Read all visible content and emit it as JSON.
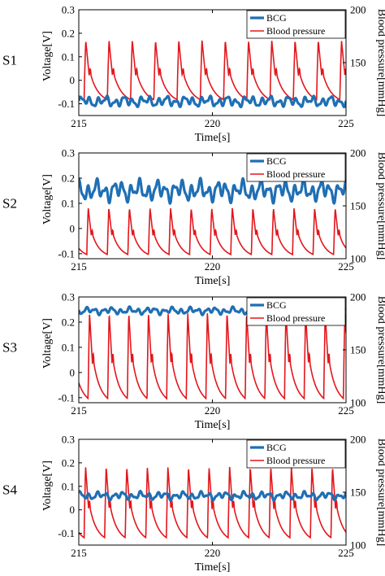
{
  "colors": {
    "bcg": "#1f6fb4",
    "bp": "#e3161b"
  },
  "chart_data": [
    {
      "type": "line",
      "row_label": "S1",
      "xlabel": "Time[s]",
      "ylabel_left": "Voltage[V]",
      "ylabel_right": "Blood pressure[mmHg]",
      "xlim": [
        215,
        225
      ],
      "ylim_left": [
        -0.15,
        0.3
      ],
      "ylim_right": [
        100,
        200
      ],
      "xticks": [
        "215",
        "220",
        "225"
      ],
      "yticks_left": [
        "-0.1",
        "0",
        "0.1",
        "0.2",
        "0.3"
      ],
      "yticks_right": [
        "150",
        "200"
      ],
      "legend": [
        "BCG",
        "Blood pressure"
      ],
      "legend_position": "top-right",
      "series": [
        {
          "name": "BCG",
          "axis": "left",
          "baseline": -0.09,
          "amplitude": 0.025,
          "phase": 0.0
        },
        {
          "name": "Blood pressure",
          "axis": "right",
          "period_s": 0.87,
          "t0": 215.2,
          "systolic_mmHg": 171,
          "diastolic_mmHg": 115,
          "notch_mmHg": 135
        }
      ]
    },
    {
      "type": "line",
      "row_label": "S2",
      "xlabel": "Time[s]",
      "ylabel_left": "Voltage[V]",
      "ylabel_right": "Blood pressure[mmHg]",
      "xlim": [
        215,
        225
      ],
      "ylim_left": [
        -0.12,
        0.3
      ],
      "ylim_right": [
        100,
        200
      ],
      "xticks": [
        "215",
        "220",
        "225"
      ],
      "yticks_left": [
        "-0.1",
        "0",
        "0.1",
        "0.2",
        "0.3"
      ],
      "yticks_right": [
        "100",
        "150",
        "200"
      ],
      "legend": [
        "BCG",
        "Blood pressure"
      ],
      "legend_position": "top-right",
      "series": [
        {
          "name": "BCG",
          "axis": "left",
          "baseline": 0.15,
          "amplitude": 0.045,
          "phase": 1.1
        },
        {
          "name": "Blood pressure",
          "axis": "right",
          "period_s": 0.77,
          "t0": 215.3,
          "systolic_mmHg": 148,
          "diastolic_mmHg": 104,
          "notch_mmHg": 125
        }
      ]
    },
    {
      "type": "line",
      "row_label": "S3",
      "xlabel": "Time[s]",
      "ylabel_left": "Voltage[V]",
      "ylabel_right": "Blood pressure[mmHg]",
      "xlim": [
        215,
        225
      ],
      "ylim_left": [
        -0.12,
        0.3
      ],
      "ylim_right": [
        100,
        200
      ],
      "xticks": [
        "215",
        "220",
        "225"
      ],
      "yticks_left": [
        "-0.1",
        "0",
        "0.1",
        "0.2",
        "0.3"
      ],
      "yticks_right": [
        "100",
        "150",
        "200"
      ],
      "legend": [
        "BCG",
        "Blood pressure"
      ],
      "legend_position": "top-right",
      "series": [
        {
          "name": "BCG",
          "axis": "left",
          "baseline": 0.245,
          "amplitude": 0.015,
          "phase": 2.3
        },
        {
          "name": "Blood pressure",
          "axis": "right",
          "period_s": 0.735,
          "t0": 215.35,
          "systolic_mmHg": 185,
          "diastolic_mmHg": 104,
          "notch_mmHg": 135
        }
      ]
    },
    {
      "type": "line",
      "row_label": "S4",
      "xlabel": "Time[s]",
      "ylabel_left": "Voltage[V]",
      "ylabel_right": "Blood pressure[mmHg]",
      "xlim": [
        215,
        225
      ],
      "ylim_left": [
        -0.15,
        0.3
      ],
      "ylim_right": [
        100,
        200
      ],
      "xticks": [
        "215",
        "220",
        "225"
      ],
      "yticks_left": [
        "-0.1",
        "0",
        "0.1",
        "0.2",
        "0.3"
      ],
      "yticks_right": [
        "100",
        "150",
        "200"
      ],
      "legend": [
        "BCG",
        "Blood pressure"
      ],
      "legend_position": "top-right",
      "series": [
        {
          "name": "BCG",
          "axis": "left",
          "baseline": 0.06,
          "amplitude": 0.018,
          "phase": 0.6
        },
        {
          "name": "Blood pressure",
          "axis": "right",
          "period_s": 0.77,
          "t0": 215.2,
          "systolic_mmHg": 174,
          "diastolic_mmHg": 107,
          "notch_mmHg": 135
        }
      ]
    }
  ]
}
